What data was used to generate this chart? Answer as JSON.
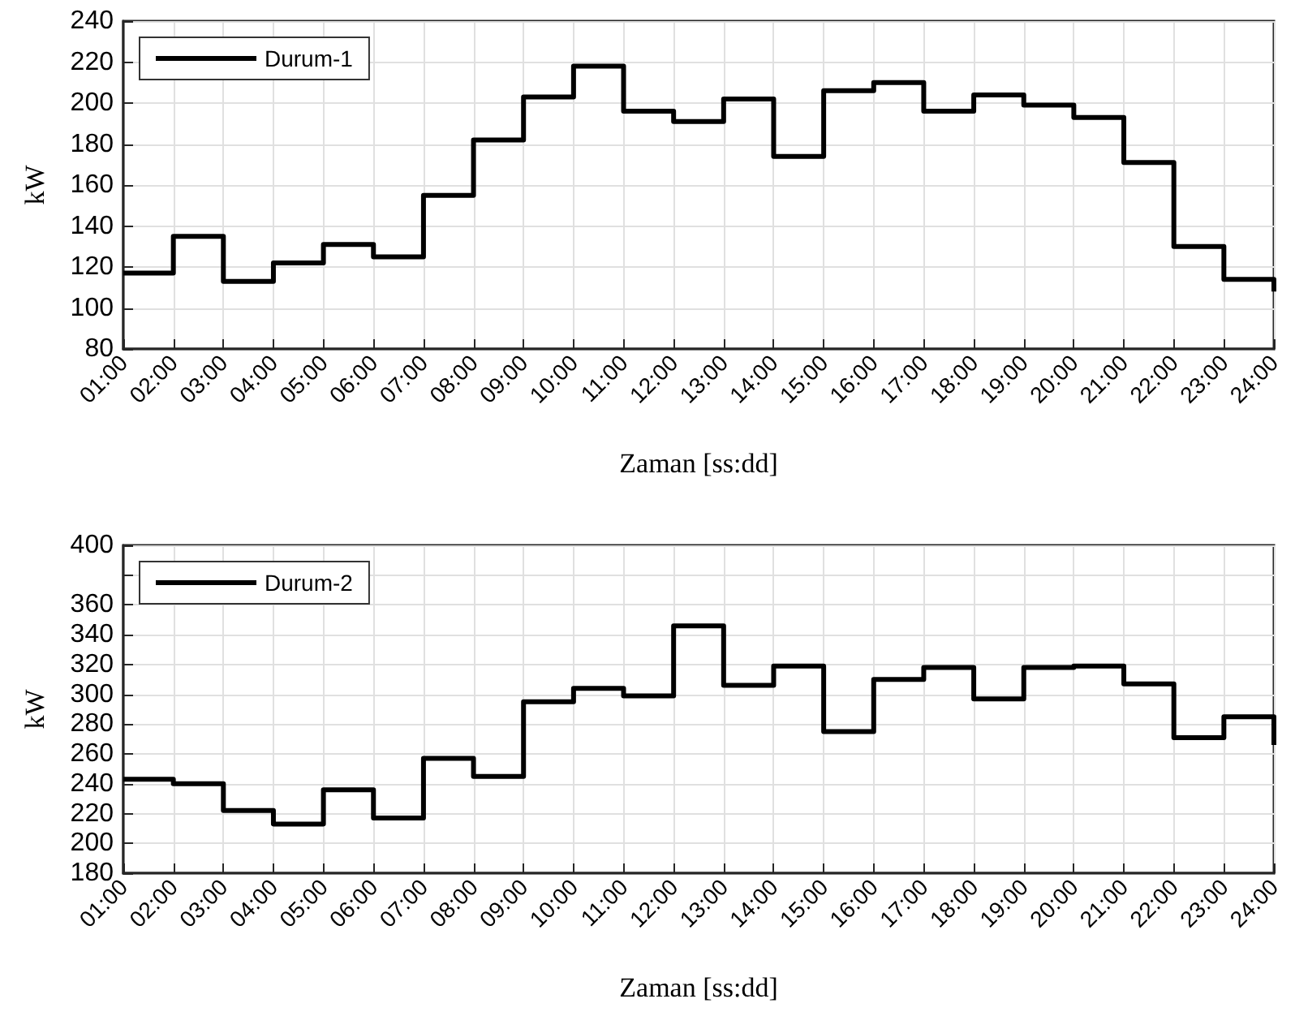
{
  "chart_data": [
    {
      "type": "step",
      "xlabel": "Zaman [ss:dd]",
      "ylabel": "kW",
      "legend": "top left",
      "grid": true,
      "x": [
        1,
        2,
        3,
        4,
        5,
        6,
        7,
        8,
        9,
        10,
        11,
        12,
        13,
        14,
        15,
        16,
        17,
        18,
        19,
        20,
        21,
        22,
        23,
        24
      ],
      "series": [
        {
          "name": "Durum-1",
          "color": "#000000",
          "values": [
            117,
            135,
            113,
            122,
            131,
            125,
            155,
            182,
            203,
            218,
            196,
            191,
            202,
            174,
            206,
            210,
            196,
            204,
            199,
            193,
            171,
            130,
            114,
            108
          ]
        }
      ],
      "xlim": [
        1,
        24
      ],
      "xticks": [
        {
          "value": 1,
          "label": "01:00"
        },
        {
          "value": 2,
          "label": "02:00"
        },
        {
          "value": 3,
          "label": "03:00"
        },
        {
          "value": 4,
          "label": "04:00"
        },
        {
          "value": 5,
          "label": "05:00"
        },
        {
          "value": 6,
          "label": "06:00"
        },
        {
          "value": 7,
          "label": "07:00"
        },
        {
          "value": 8,
          "label": "08:00"
        },
        {
          "value": 9,
          "label": "09:00"
        },
        {
          "value": 10,
          "label": "10:00"
        },
        {
          "value": 11,
          "label": "11:00"
        },
        {
          "value": 12,
          "label": "12:00"
        },
        {
          "value": 13,
          "label": "13:00"
        },
        {
          "value": 14,
          "label": "14:00"
        },
        {
          "value": 15,
          "label": "15:00"
        },
        {
          "value": 16,
          "label": "16:00"
        },
        {
          "value": 17,
          "label": "17:00"
        },
        {
          "value": 18,
          "label": "18:00"
        },
        {
          "value": 19,
          "label": "19:00"
        },
        {
          "value": 20,
          "label": "20:00"
        },
        {
          "value": 21,
          "label": "21:00"
        },
        {
          "value": 22,
          "label": "22:00"
        },
        {
          "value": 23,
          "label": "23:00"
        },
        {
          "value": 24,
          "label": "24:00"
        }
      ],
      "ylim": [
        80,
        240
      ],
      "yticks": [
        80,
        100,
        120,
        140,
        160,
        180,
        200,
        220,
        240
      ]
    },
    {
      "type": "step",
      "xlabel": "Zaman [ss:dd]",
      "ylabel": "kW",
      "legend": "top left",
      "grid": true,
      "x": [
        1,
        2,
        3,
        4,
        5,
        6,
        7,
        8,
        9,
        10,
        11,
        12,
        13,
        14,
        15,
        16,
        17,
        18,
        19,
        20,
        21,
        22,
        23,
        24
      ],
      "series": [
        {
          "name": "Durum-2",
          "color": "#000000",
          "values": [
            243,
            240,
            222,
            213,
            236,
            217,
            257,
            245,
            295,
            304,
            299,
            346,
            306,
            319,
            275,
            310,
            318,
            297,
            318,
            319,
            307,
            271,
            285,
            266
          ]
        }
      ],
      "xlim": [
        1,
        24
      ],
      "xticks": [
        {
          "value": 1,
          "label": "01:00"
        },
        {
          "value": 2,
          "label": "02:00"
        },
        {
          "value": 3,
          "label": "03:00"
        },
        {
          "value": 4,
          "label": "04:00"
        },
        {
          "value": 5,
          "label": "05:00"
        },
        {
          "value": 6,
          "label": "06:00"
        },
        {
          "value": 7,
          "label": "07:00"
        },
        {
          "value": 8,
          "label": "08:00"
        },
        {
          "value": 9,
          "label": "09:00"
        },
        {
          "value": 10,
          "label": "10:00"
        },
        {
          "value": 11,
          "label": "11:00"
        },
        {
          "value": 12,
          "label": "12:00"
        },
        {
          "value": 13,
          "label": "13:00"
        },
        {
          "value": 14,
          "label": "14:00"
        },
        {
          "value": 15,
          "label": "15:00"
        },
        {
          "value": 16,
          "label": "16:00"
        },
        {
          "value": 17,
          "label": "17:00"
        },
        {
          "value": 18,
          "label": "18:00"
        },
        {
          "value": 19,
          "label": "19:00"
        },
        {
          "value": 20,
          "label": "20:00"
        },
        {
          "value": 21,
          "label": "21:00"
        },
        {
          "value": 22,
          "label": "22:00"
        },
        {
          "value": 23,
          "label": "23:00"
        },
        {
          "value": 24,
          "label": "24:00"
        }
      ],
      "ylim": [
        180,
        400
      ],
      "yticks": [
        180,
        200,
        220,
        240,
        260,
        280,
        300,
        320,
        340,
        360,
        {
          "value": 380,
          "label": null
        },
        400
      ]
    }
  ]
}
